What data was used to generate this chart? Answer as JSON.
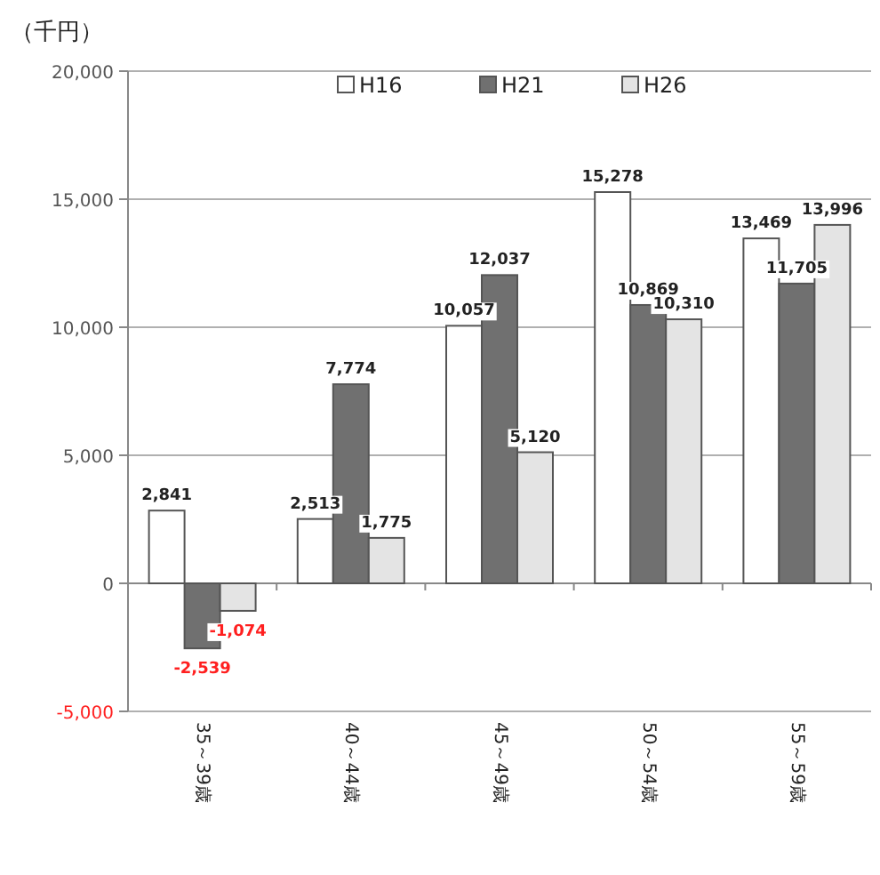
{
  "chart_data": {
    "type": "bar",
    "ylabel": "（千円）",
    "categories": [
      "35～39歳",
      "40～44歳",
      "45～49歳",
      "50～54歳",
      "55～59歳"
    ],
    "series": [
      {
        "name": "H16",
        "color": "#ffffff",
        "values": [
          2841,
          2513,
          10057,
          15278,
          13469
        ],
        "value_labels": [
          "2,841",
          "2,513",
          "10,057",
          "15,278",
          "13,469"
        ]
      },
      {
        "name": "H21",
        "color": "#707070",
        "values": [
          -2539,
          7774,
          12037,
          10869,
          11705
        ],
        "value_labels": [
          "-2,539",
          "7,774",
          "12,037",
          "10,869",
          "11,705"
        ]
      },
      {
        "name": "H26",
        "color": "#e4e4e4",
        "values": [
          -1074,
          1775,
          5120,
          10310,
          13996
        ],
        "value_labels": [
          "-1,074",
          "1,775",
          "5,120",
          "10,310",
          "13,996"
        ]
      }
    ],
    "ylim": [
      -5000,
      20000
    ],
    "yticks": [
      {
        "value": -5000,
        "label": "-5,000"
      },
      0,
      {
        "value": 5000,
        "label": "5,000"
      },
      {
        "value": 10000,
        "label": "10,000"
      },
      {
        "value": 15000,
        "label": "15,000"
      },
      {
        "value": 20000,
        "label": "20,000"
      }
    ],
    "grid": "y",
    "legend": "top"
  }
}
